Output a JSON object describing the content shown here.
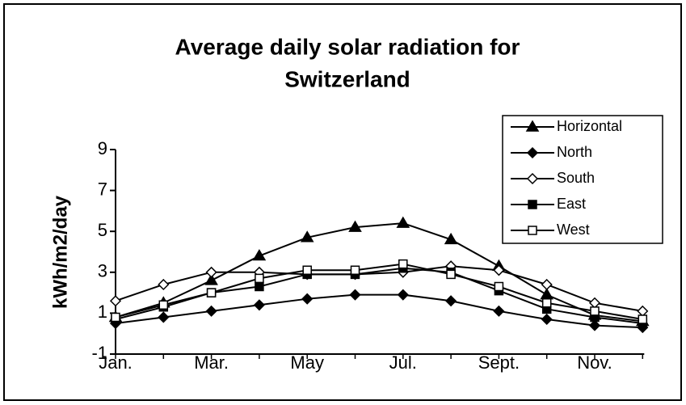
{
  "chart_data": {
    "type": "line",
    "title": [
      "Average daily solar radiation for",
      "Switzerland"
    ],
    "y_label": "kWh/m2/day",
    "categories": [
      "Jan.",
      null,
      "Mar.",
      null,
      "May",
      null,
      "Jul.",
      null,
      "Sept.",
      null,
      "Nov.",
      null
    ],
    "series": [
      {
        "name": "Horizontal",
        "color": "#000000",
        "marker": "triangle",
        "values": [
          0.8,
          1.5,
          2.6,
          3.8,
          4.7,
          5.2,
          5.4,
          4.6,
          3.3,
          1.9,
          0.9,
          0.6
        ]
      },
      {
        "name": "North",
        "color": "#000000",
        "marker": "diamond",
        "values": [
          0.5,
          0.8,
          1.1,
          1.4,
          1.7,
          1.9,
          1.9,
          1.6,
          1.1,
          0.7,
          0.4,
          0.3
        ]
      },
      {
        "name": "South",
        "color": "#000000",
        "marker": "diamond-open",
        "values": [
          1.6,
          2.4,
          3.0,
          3.0,
          2.9,
          2.9,
          3.0,
          3.3,
          3.1,
          2.4,
          1.5,
          1.1
        ]
      },
      {
        "name": "East",
        "color": "#000000",
        "marker": "square",
        "values": [
          0.7,
          1.3,
          2.0,
          2.3,
          2.9,
          2.9,
          3.2,
          3.0,
          2.1,
          1.2,
          0.8,
          0.5
        ]
      },
      {
        "name": "West",
        "color": "#000000",
        "marker": "square-open",
        "values": [
          0.8,
          1.4,
          2.0,
          2.7,
          3.1,
          3.1,
          3.4,
          2.9,
          2.3,
          1.5,
          1.1,
          0.7
        ]
      }
    ],
    "ylim": [
      -1,
      9
    ],
    "yticks": [
      -1,
      1,
      3,
      5,
      7,
      9
    ],
    "grid": false,
    "legend": "upper right"
  }
}
